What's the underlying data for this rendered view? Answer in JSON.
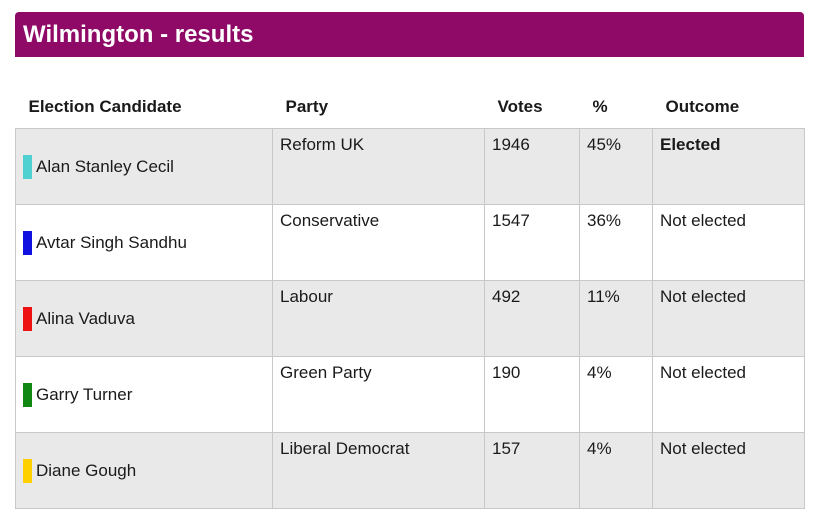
{
  "title": "Wilmington - results",
  "columns": {
    "candidate": "Election Candidate",
    "party": "Party",
    "votes": "Votes",
    "percent": "%",
    "outcome": "Outcome"
  },
  "rows": [
    {
      "candidate": "Alan Stanley Cecil",
      "party": "Reform UK",
      "votes": "1946",
      "percent": "45%",
      "outcome": "Elected",
      "elected": true,
      "color": "#4fd1d1"
    },
    {
      "candidate": "Avtar Singh Sandhu",
      "party": "Conservative",
      "votes": "1547",
      "percent": "36%",
      "outcome": "Not elected",
      "elected": false,
      "color": "#1010e0"
    },
    {
      "candidate": "Alina Vaduva",
      "party": "Labour",
      "votes": "492",
      "percent": "11%",
      "outcome": "Not elected",
      "elected": false,
      "color": "#ee1111"
    },
    {
      "candidate": "Garry Turner",
      "party": "Green Party",
      "votes": "190",
      "percent": "4%",
      "outcome": "Not elected",
      "elected": false,
      "color": "#118811"
    },
    {
      "candidate": "Diane Gough",
      "party": "Liberal Democrat",
      "votes": "157",
      "percent": "4%",
      "outcome": "Not elected",
      "elected": false,
      "color": "#ffd000"
    }
  ]
}
